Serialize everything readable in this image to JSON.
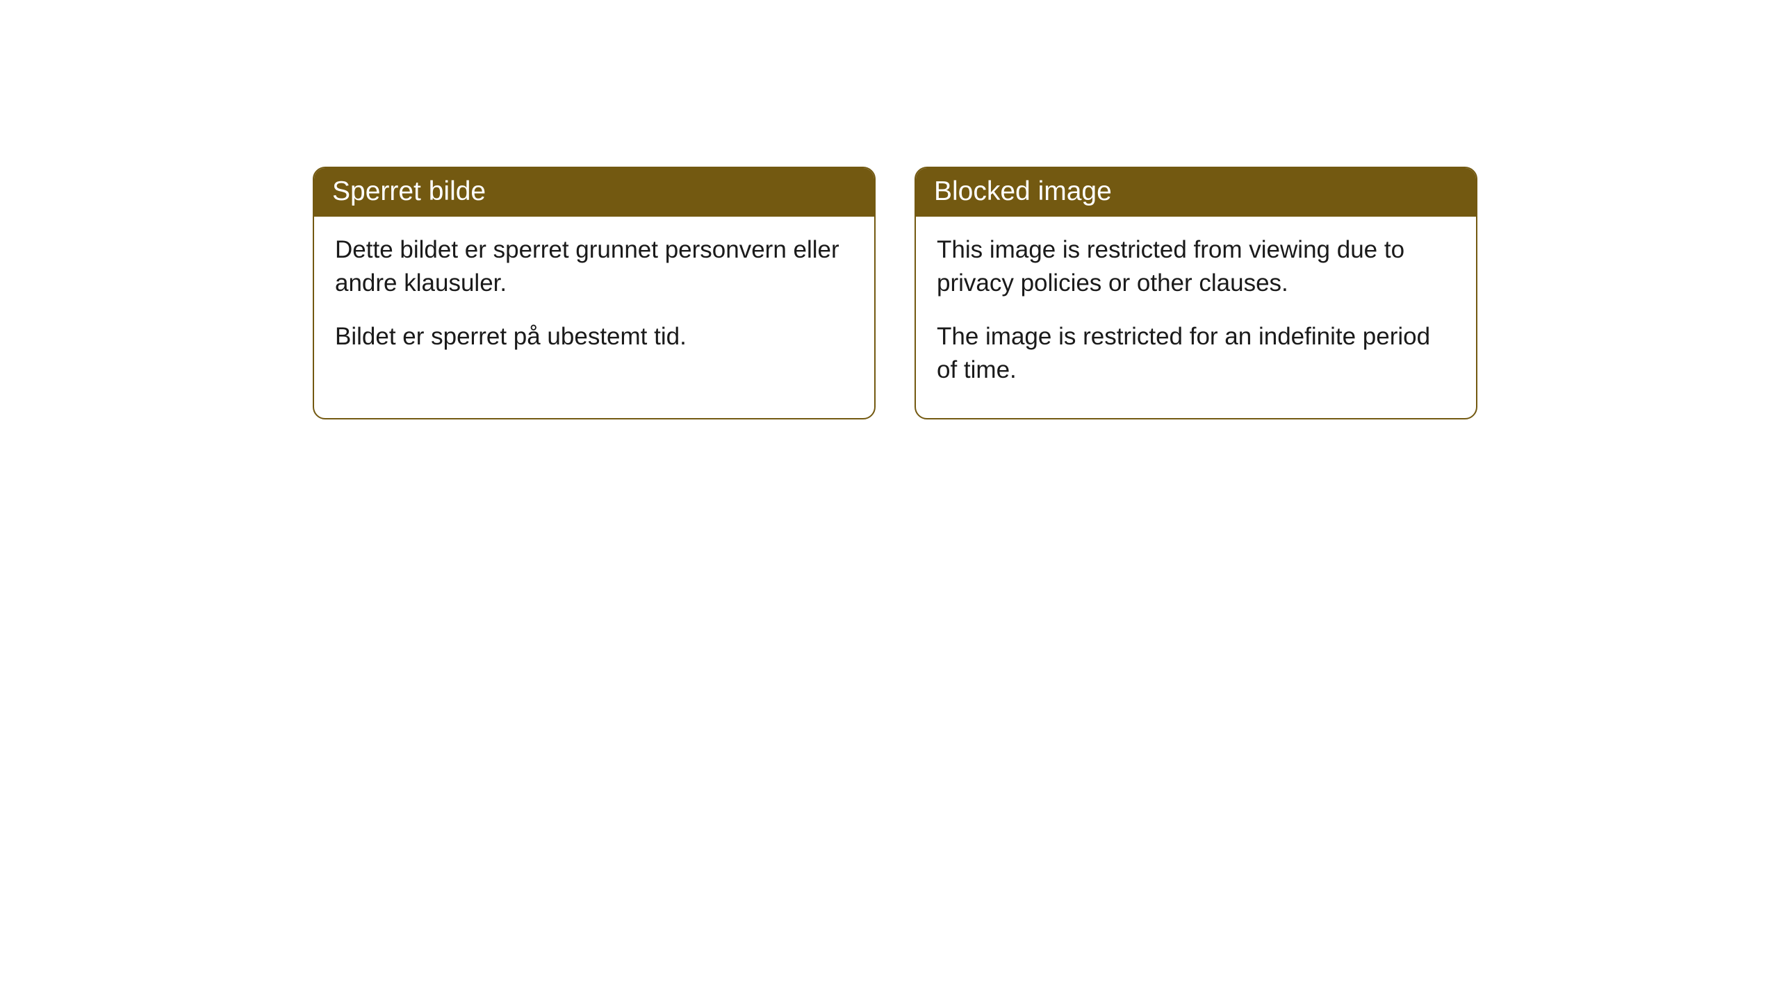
{
  "cards": [
    {
      "title": "Sperret bilde",
      "paragraph1": "Dette bildet er sperret grunnet personvern eller andre klausuler.",
      "paragraph2": "Bildet er sperret på ubestemt tid."
    },
    {
      "title": "Blocked image",
      "paragraph1": "This image is restricted from viewing due to privacy policies or other clauses.",
      "paragraph2": "The image is restricted for an indefinite period of time."
    }
  ],
  "styling": {
    "header_bg_color": "#735911",
    "header_text_color": "#ffffff",
    "border_color": "#735911",
    "body_bg_color": "#ffffff",
    "body_text_color": "#1a1a1a",
    "border_radius": 18,
    "header_fontsize": 39,
    "body_fontsize": 35
  }
}
